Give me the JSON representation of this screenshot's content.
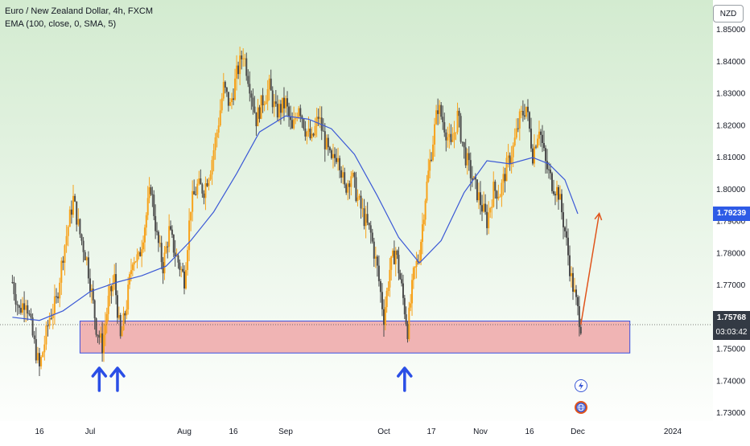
{
  "legend": {
    "title": "Euro / New Zealand Dollar, 4h, FXCM",
    "indicator": "EMA (100, close, 0, SMA, 5)"
  },
  "currency_button": "NZD",
  "price_labels": {
    "ema": "1.79239",
    "last_price": "1.75768",
    "countdown": "03:03:42"
  },
  "colors": {
    "background_top": "#d3ebd0",
    "background_bottom": "#ffffff",
    "bull_candle": "#f7a21b",
    "bear_candle": "#4d4d4d",
    "ema_line": "#3b59d6",
    "zone_fill": "#f0b4b4",
    "zone_border": "#3b4fe0",
    "arrow_up": "#2a4ee6",
    "projection_arrow": "#e0541b",
    "ema_label_bg": "#2e5be6",
    "price_label_bg": "#333a44"
  },
  "icons": [
    "up-arrow-icon",
    "lightning-icon",
    "globe-icon"
  ],
  "chart_data": {
    "type": "candlestick",
    "symbol": "EURNZD",
    "timeframe": "4h",
    "y_axis": {
      "ticks": [
        "1.85000",
        "1.84000",
        "1.83000",
        "1.82000",
        "1.81000",
        "1.80000",
        "1.79000",
        "1.78000",
        "1.77000",
        "1.76000",
        "1.75000",
        "1.74000",
        "1.73000"
      ],
      "tick_values": [
        1.85,
        1.84,
        1.83,
        1.82,
        1.81,
        1.8,
        1.79,
        1.78,
        1.77,
        1.76,
        1.75,
        1.74,
        1.73
      ],
      "range": [
        1.728,
        1.852
      ]
    },
    "x_axis": {
      "ticks": [
        "16",
        "Jul",
        "Aug",
        "16",
        "Sep",
        "Oct",
        "17",
        "Nov",
        "16",
        "Dec",
        "2024"
      ],
      "tick_dates": [
        "2023-06-16",
        "2023-07-01",
        "2023-08-01",
        "2023-08-16",
        "2023-09-01",
        "2023-10-01",
        "2023-10-17",
        "2023-11-01",
        "2023-11-16",
        "2023-12-01",
        "2024-01-01"
      ],
      "range": [
        "2023-06-08",
        "2024-01-06"
      ]
    },
    "price_path": [
      [
        "2023-06-08",
        1.771
      ],
      [
        "2023-06-10",
        1.762
      ],
      [
        "2023-06-12",
        1.766
      ],
      [
        "2023-06-14",
        1.754
      ],
      [
        "2023-06-16",
        1.744
      ],
      [
        "2023-06-19",
        1.76
      ],
      [
        "2023-06-21",
        1.765
      ],
      [
        "2023-06-23",
        1.78
      ],
      [
        "2023-06-26",
        1.797
      ],
      [
        "2023-06-28",
        1.786
      ],
      [
        "2023-06-30",
        1.778
      ],
      [
        "2023-07-03",
        1.757
      ],
      [
        "2023-07-05",
        1.751
      ],
      [
        "2023-07-07",
        1.765
      ],
      [
        "2023-07-09",
        1.772
      ],
      [
        "2023-07-11",
        1.753
      ],
      [
        "2023-07-13",
        1.764
      ],
      [
        "2023-07-15",
        1.779
      ],
      [
        "2023-07-17",
        1.778
      ],
      [
        "2023-07-19",
        1.789
      ],
      [
        "2023-07-21",
        1.801
      ],
      [
        "2023-07-23",
        1.785
      ],
      [
        "2023-07-25",
        1.776
      ],
      [
        "2023-07-27",
        1.787
      ],
      [
        "2023-07-29",
        1.78
      ],
      [
        "2023-08-01",
        1.772
      ],
      [
        "2023-08-03",
        1.795
      ],
      [
        "2023-08-05",
        1.801
      ],
      [
        "2023-08-07",
        1.8
      ],
      [
        "2023-08-09",
        1.807
      ],
      [
        "2023-08-11",
        1.818
      ],
      [
        "2023-08-13",
        1.832
      ],
      [
        "2023-08-15",
        1.826
      ],
      [
        "2023-08-17",
        1.836
      ],
      [
        "2023-08-19",
        1.843
      ],
      [
        "2023-08-21",
        1.833
      ],
      [
        "2023-08-23",
        1.822
      ],
      [
        "2023-08-25",
        1.828
      ],
      [
        "2023-08-27",
        1.832
      ],
      [
        "2023-08-29",
        1.824
      ],
      [
        "2023-09-01",
        1.827
      ],
      [
        "2023-09-03",
        1.818
      ],
      [
        "2023-09-05",
        1.827
      ],
      [
        "2023-09-07",
        1.819
      ],
      [
        "2023-09-09",
        1.815
      ],
      [
        "2023-09-11",
        1.823
      ],
      [
        "2023-09-13",
        1.815
      ],
      [
        "2023-09-15",
        1.808
      ],
      [
        "2023-09-17",
        1.812
      ],
      [
        "2023-09-19",
        1.8
      ],
      [
        "2023-09-21",
        1.805
      ],
      [
        "2023-09-23",
        1.797
      ],
      [
        "2023-09-25",
        1.791
      ],
      [
        "2023-09-27",
        1.786
      ],
      [
        "2023-09-29",
        1.775
      ],
      [
        "2023-10-01",
        1.76
      ],
      [
        "2023-10-03",
        1.775
      ],
      [
        "2023-10-05",
        1.781
      ],
      [
        "2023-10-07",
        1.769
      ],
      [
        "2023-10-09",
        1.756
      ],
      [
        "2023-10-11",
        1.773
      ],
      [
        "2023-10-13",
        1.78
      ],
      [
        "2023-10-15",
        1.798
      ],
      [
        "2023-10-17",
        1.812
      ],
      [
        "2023-10-19",
        1.826
      ],
      [
        "2023-10-21",
        1.82
      ],
      [
        "2023-10-23",
        1.813
      ],
      [
        "2023-10-25",
        1.823
      ],
      [
        "2023-10-27",
        1.812
      ],
      [
        "2023-10-29",
        1.805
      ],
      [
        "2023-11-01",
        1.796
      ],
      [
        "2023-11-03",
        1.79
      ],
      [
        "2023-11-05",
        1.8
      ],
      [
        "2023-11-07",
        1.799
      ],
      [
        "2023-11-09",
        1.807
      ],
      [
        "2023-11-11",
        1.813
      ],
      [
        "2023-11-13",
        1.822
      ],
      [
        "2023-11-15",
        1.826
      ],
      [
        "2023-11-17",
        1.811
      ],
      [
        "2023-11-19",
        1.82
      ],
      [
        "2023-11-21",
        1.808
      ],
      [
        "2023-11-23",
        1.802
      ],
      [
        "2023-11-25",
        1.799
      ],
      [
        "2023-11-27",
        1.787
      ],
      [
        "2023-11-29",
        1.772
      ],
      [
        "2023-12-01",
        1.762
      ],
      [
        "2023-12-02",
        1.7577
      ]
    ],
    "ema_100": [
      [
        "2023-06-08",
        1.76
      ],
      [
        "2023-06-16",
        1.759
      ],
      [
        "2023-06-23",
        1.762
      ],
      [
        "2023-07-01",
        1.768
      ],
      [
        "2023-07-10",
        1.771
      ],
      [
        "2023-07-18",
        1.773
      ],
      [
        "2023-07-26",
        1.776
      ],
      [
        "2023-08-03",
        1.784
      ],
      [
        "2023-08-10",
        1.793
      ],
      [
        "2023-08-17",
        1.805
      ],
      [
        "2023-08-24",
        1.818
      ],
      [
        "2023-09-01",
        1.823
      ],
      [
        "2023-09-08",
        1.822
      ],
      [
        "2023-09-15",
        1.819
      ],
      [
        "2023-09-22",
        1.811
      ],
      [
        "2023-09-29",
        1.798
      ],
      [
        "2023-10-06",
        1.785
      ],
      [
        "2023-10-13",
        1.777
      ],
      [
        "2023-10-20",
        1.784
      ],
      [
        "2023-10-27",
        1.799
      ],
      [
        "2023-11-03",
        1.809
      ],
      [
        "2023-11-10",
        1.808
      ],
      [
        "2023-11-17",
        1.81
      ],
      [
        "2023-11-22",
        1.808
      ],
      [
        "2023-11-27",
        1.803
      ],
      [
        "2023-12-01",
        1.7924
      ]
    ],
    "support_zone": {
      "low": 1.7488,
      "high": 1.7588,
      "start": "2023-06-28",
      "end": "2023-12-18"
    },
    "reversal_markers": [
      "2023-07-04",
      "2023-07-10",
      "2023-10-08"
    ],
    "projection": {
      "from": [
        "2023-12-02",
        1.7577
      ],
      "to": [
        "2023-12-08",
        1.7925
      ]
    },
    "current_price": 1.75768,
    "ema_value": 1.79239
  }
}
